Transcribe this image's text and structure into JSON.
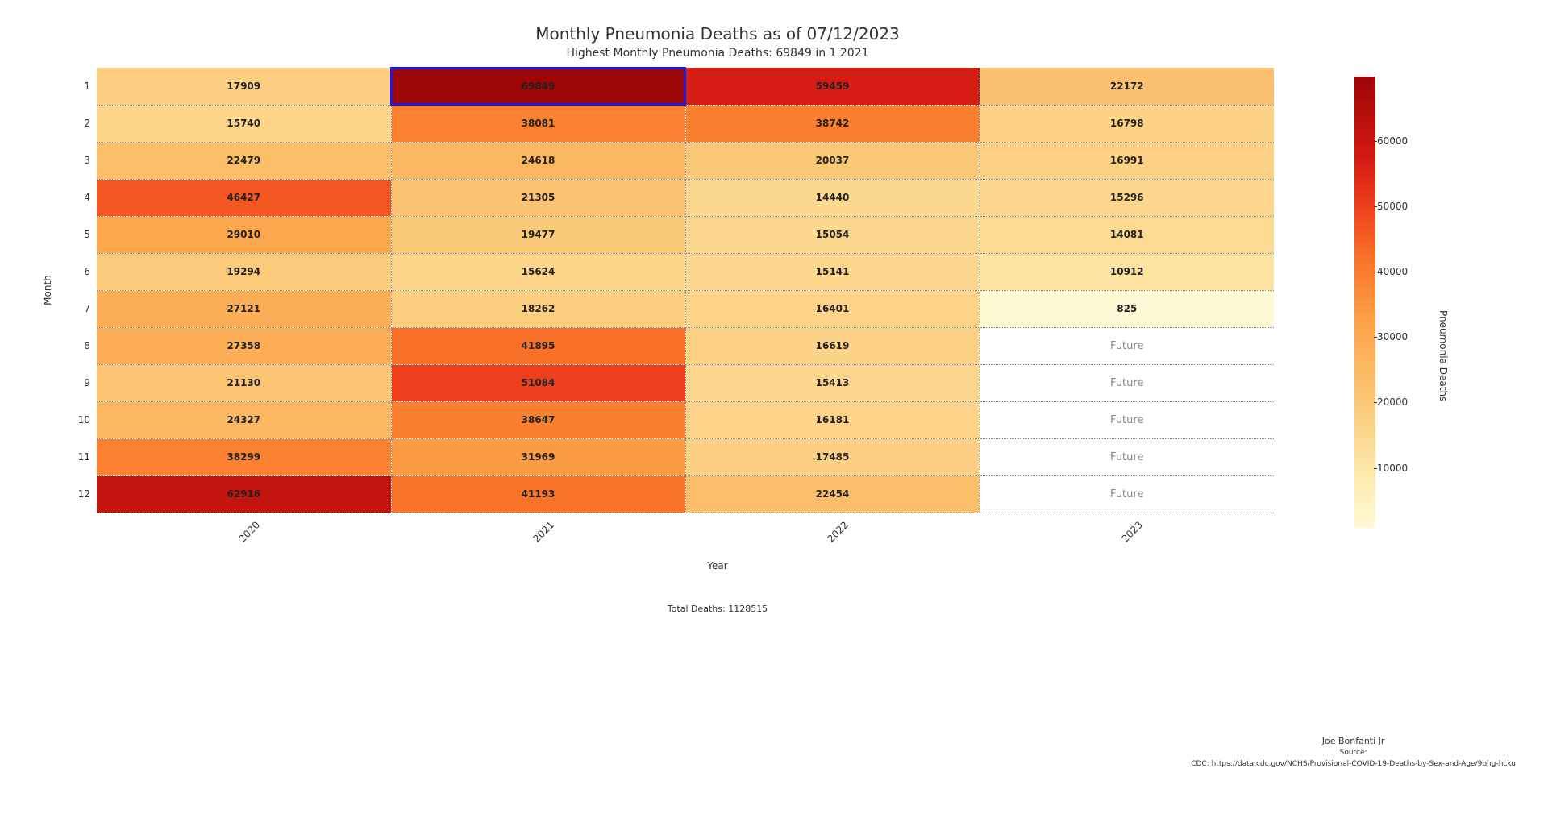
{
  "chart": {
    "type": "heatmap",
    "title": "Monthly Pneumonia Deaths as of 07/12/2023",
    "subtitle": "Highest Monthly Pneumonia Deaths: 69849 in 1 2021",
    "xlabel": "Year",
    "ylabel": "Month",
    "years": [
      "2020",
      "2021",
      "2022",
      "2023"
    ],
    "months": [
      "1",
      "2",
      "3",
      "4",
      "5",
      "6",
      "7",
      "8",
      "9",
      "10",
      "11",
      "12"
    ],
    "future_label": "Future",
    "data": [
      [
        17909,
        69849,
        59459,
        22172
      ],
      [
        15740,
        38081,
        38742,
        16798
      ],
      [
        22479,
        24618,
        20037,
        16991
      ],
      [
        46427,
        21305,
        14440,
        15296
      ],
      [
        29010,
        19477,
        15054,
        14081
      ],
      [
        19294,
        15624,
        15141,
        10912
      ],
      [
        27121,
        18262,
        16401,
        825
      ],
      [
        27358,
        41895,
        16619,
        null
      ],
      [
        21130,
        51084,
        15413,
        null
      ],
      [
        24327,
        38647,
        16181,
        null
      ],
      [
        38299,
        31969,
        17485,
        null
      ],
      [
        62916,
        41193,
        22454,
        null
      ]
    ],
    "highlight": {
      "row": 0,
      "col": 1
    },
    "vmin": 825,
    "vmax": 69849,
    "colormap_stops": [
      {
        "v": 825,
        "c": "#fffad5"
      },
      {
        "v": 10000,
        "c": "#fde6a5"
      },
      {
        "v": 20000,
        "c": "#fbc877"
      },
      {
        "v": 30000,
        "c": "#fca349"
      },
      {
        "v": 40000,
        "c": "#fa7a2a"
      },
      {
        "v": 50000,
        "c": "#f0441e"
      },
      {
        "v": 60000,
        "c": "#d41a12"
      },
      {
        "v": 69849,
        "c": "#9e0508"
      }
    ],
    "colorbar_label": "Pneumonia Deaths",
    "colorbar_ticks": [
      10000,
      20000,
      30000,
      40000,
      50000,
      60000
    ],
    "total_label": "Total Deaths: 1128515",
    "grid_color": "#888888",
    "background_color": "#ffffff",
    "title_fontsize": 20,
    "subtitle_fontsize": 14,
    "tick_fontsize": 12,
    "cell_fontsize": 12
  },
  "attribution": {
    "author": "Joe Bonfanti Jr",
    "source_label": "Source:",
    "source": "CDC: https://data.cdc.gov/NCHS/Provisional-COVID-19-Deaths-by-Sex-and-Age/9bhg-hcku"
  }
}
